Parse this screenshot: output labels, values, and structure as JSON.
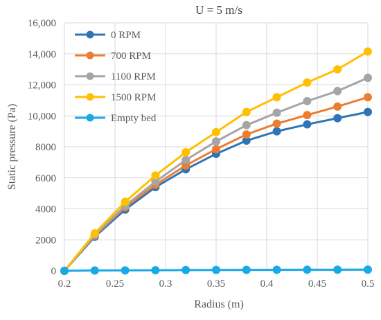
{
  "chart_data": {
    "type": "line",
    "title": "U = 5 m/s",
    "xlabel": "Radius (m)",
    "ylabel": "Static pressure (Pa)",
    "xlim": [
      0.2,
      0.5
    ],
    "ylim": [
      0,
      16000
    ],
    "x_ticks": [
      0.2,
      0.25,
      0.3,
      0.35,
      0.4,
      0.45,
      0.5
    ],
    "x_tick_labels": [
      "0.2",
      "0.25",
      "0.3",
      "0.35",
      "0.4",
      "0.45",
      "0.5"
    ],
    "y_ticks": [
      0,
      2000,
      4000,
      6000,
      8000,
      10000,
      12000,
      14000,
      16000
    ],
    "y_tick_labels": [
      "0",
      "2000",
      "4000",
      "6000",
      "8000",
      "10,000",
      "12,000",
      "14,000",
      "16,000"
    ],
    "grid": true,
    "legend_position": "top-left",
    "x": [
      0.2,
      0.23,
      0.26,
      0.29,
      0.32,
      0.35,
      0.38,
      0.41,
      0.44,
      0.47,
      0.5
    ],
    "series": [
      {
        "name": "0 RPM",
        "color": "#2E75B6",
        "values": [
          0,
          2200,
          3950,
          5400,
          6550,
          7550,
          8400,
          9000,
          9450,
          9850,
          10250
        ]
      },
      {
        "name": "700 RPM",
        "color": "#ED7D31",
        "values": [
          0,
          2280,
          4100,
          5550,
          6800,
          7850,
          8800,
          9500,
          10050,
          10600,
          11200
        ]
      },
      {
        "name": "1100 RPM",
        "color": "#A5A5A5",
        "values": [
          0,
          2320,
          4200,
          5750,
          7150,
          8350,
          9400,
          10200,
          10950,
          11600,
          12450
        ]
      },
      {
        "name": "1500 RPM",
        "color": "#FFC000",
        "values": [
          0,
          2420,
          4450,
          6150,
          7650,
          8950,
          10250,
          11200,
          12150,
          13000,
          14150
        ]
      },
      {
        "name": "Empty bed",
        "color": "#19A9E6",
        "values": [
          0,
          20,
          30,
          40,
          50,
          55,
          60,
          65,
          70,
          75,
          80
        ]
      }
    ]
  }
}
